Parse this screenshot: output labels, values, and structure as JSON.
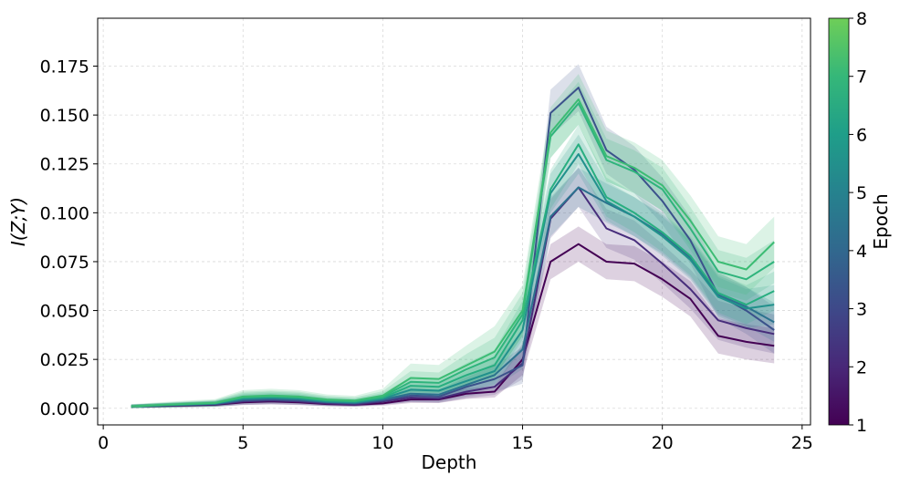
{
  "chart_data": {
    "type": "line",
    "title": "",
    "xlabel": "Depth",
    "ylabel": "I(Z;Y)",
    "xlim": [
      -0.2,
      25.3
    ],
    "ylim": [
      -0.0085,
      0.1995
    ],
    "xticks": [
      0,
      5,
      10,
      15,
      20,
      25
    ],
    "yticks": [
      0.0,
      0.025,
      0.05,
      0.075,
      0.1,
      0.125,
      0.15,
      0.175
    ],
    "ytick_labels": [
      "0.000",
      "0.025",
      "0.050",
      "0.075",
      "0.100",
      "0.125",
      "0.150",
      "0.175"
    ],
    "grid": true,
    "colorbar": {
      "label": "Epoch",
      "range": [
        1,
        8
      ],
      "ticks": [
        "1",
        "2",
        "3",
        "4",
        "5",
        "6",
        "7",
        "8"
      ],
      "colormap": "viridis",
      "colors": [
        "#440154",
        "#482878",
        "#3e4989",
        "#31688e",
        "#26828e",
        "#1f9e89",
        "#35b779",
        "#6ece58"
      ]
    },
    "x": [
      1,
      2,
      3,
      4,
      5,
      6,
      7,
      8,
      9,
      10,
      11,
      12,
      13,
      14,
      15,
      16,
      17,
      18,
      19,
      20,
      21,
      22,
      23,
      24
    ],
    "series": [
      {
        "name": "Epoch 1",
        "epoch": 1,
        "color": "#440154",
        "values": [
          0.001,
          0.0012,
          0.0015,
          0.0018,
          0.003,
          0.0035,
          0.003,
          0.0022,
          0.0018,
          0.0025,
          0.0045,
          0.0045,
          0.0075,
          0.0085,
          0.025,
          0.075,
          0.084,
          0.075,
          0.074,
          0.066,
          0.056,
          0.037,
          0.034,
          0.032
        ],
        "band": 0.009
      },
      {
        "name": "Epoch 2",
        "epoch": 2,
        "color": "#472d7b",
        "values": [
          0.001,
          0.0013,
          0.0017,
          0.002,
          0.0035,
          0.004,
          0.0035,
          0.0025,
          0.002,
          0.0035,
          0.0055,
          0.005,
          0.0085,
          0.011,
          0.023,
          0.097,
          0.113,
          0.092,
          0.086,
          0.074,
          0.061,
          0.045,
          0.041,
          0.038
        ],
        "band": 0.01
      },
      {
        "name": "Epoch 3",
        "epoch": 3,
        "color": "#3b528b",
        "values": [
          0.001,
          0.0014,
          0.0018,
          0.0022,
          0.004,
          0.0045,
          0.004,
          0.003,
          0.0025,
          0.004,
          0.0065,
          0.006,
          0.011,
          0.015,
          0.022,
          0.151,
          0.164,
          0.132,
          0.122,
          0.106,
          0.086,
          0.058,
          0.05,
          0.04
        ],
        "band": 0.012
      },
      {
        "name": "Epoch 4",
        "epoch": 4,
        "color": "#2c728e",
        "values": [
          0.001,
          0.0015,
          0.0019,
          0.0023,
          0.0045,
          0.005,
          0.0045,
          0.0032,
          0.0028,
          0.0045,
          0.0075,
          0.007,
          0.012,
          0.017,
          0.03,
          0.098,
          0.113,
          0.105,
          0.098,
          0.089,
          0.077,
          0.058,
          0.052,
          0.044
        ],
        "band": 0.01
      },
      {
        "name": "Epoch 5",
        "epoch": 5,
        "color": "#21918c",
        "values": [
          0.001,
          0.0015,
          0.002,
          0.0025,
          0.005,
          0.0055,
          0.005,
          0.0035,
          0.003,
          0.005,
          0.0095,
          0.009,
          0.014,
          0.019,
          0.04,
          0.11,
          0.13,
          0.106,
          0.098,
          0.088,
          0.076,
          0.057,
          0.051,
          0.053
        ],
        "band": 0.01
      },
      {
        "name": "Epoch 6",
        "epoch": 6,
        "color": "#28ae80",
        "values": [
          0.001,
          0.0016,
          0.0021,
          0.0026,
          0.0055,
          0.006,
          0.0055,
          0.004,
          0.0035,
          0.0055,
          0.0115,
          0.011,
          0.017,
          0.022,
          0.045,
          0.112,
          0.135,
          0.108,
          0.1,
          0.09,
          0.078,
          0.059,
          0.053,
          0.06
        ],
        "band": 0.01
      },
      {
        "name": "Epoch 7",
        "epoch": 7,
        "color": "#2fb47c",
        "values": [
          0.001,
          0.0016,
          0.0022,
          0.0027,
          0.0058,
          0.0062,
          0.0058,
          0.0042,
          0.0037,
          0.006,
          0.0135,
          0.013,
          0.02,
          0.026,
          0.048,
          0.139,
          0.156,
          0.127,
          0.121,
          0.112,
          0.092,
          0.07,
          0.066,
          0.075
        ],
        "band": 0.011
      },
      {
        "name": "Epoch 8",
        "epoch": 8,
        "color": "#3cbc74",
        "values": [
          0.001,
          0.0017,
          0.0023,
          0.0028,
          0.006,
          0.0065,
          0.006,
          0.0045,
          0.004,
          0.0065,
          0.0155,
          0.015,
          0.022,
          0.029,
          0.05,
          0.141,
          0.158,
          0.129,
          0.123,
          0.114,
          0.096,
          0.075,
          0.071,
          0.085
        ],
        "band": 0.013
      }
    ]
  }
}
